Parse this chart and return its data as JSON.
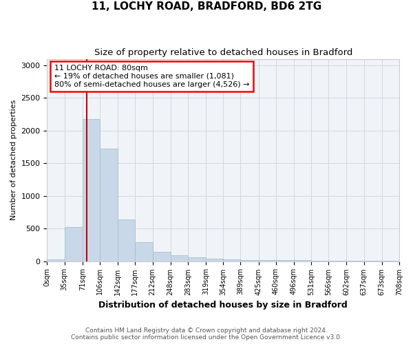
{
  "title1": "11, LOCHY ROAD, BRADFORD, BD6 2TG",
  "title2": "Size of property relative to detached houses in Bradford",
  "xlabel": "Distribution of detached houses by size in Bradford",
  "ylabel": "Number of detached properties",
  "footer1": "Contains HM Land Registry data © Crown copyright and database right 2024.",
  "footer2": "Contains public sector information licensed under the Open Government Licence v3.0.",
  "annotation_line1": "11 LOCHY ROAD: 80sqm",
  "annotation_line2": "← 19% of detached houses are smaller (1,081)",
  "annotation_line3": "80% of semi-detached houses are larger (4,526) →",
  "bar_color": "#c8d8e8",
  "bar_edge_color": "#a8bfd0",
  "red_line_x": 80,
  "bin_edges": [
    0,
    35,
    71,
    106,
    142,
    177,
    212,
    248,
    283,
    319,
    354,
    389,
    425,
    460,
    496,
    531,
    566,
    602,
    637,
    673,
    708
  ],
  "bar_heights": [
    30,
    520,
    2180,
    1720,
    640,
    290,
    145,
    90,
    55,
    40,
    25,
    20,
    15,
    20,
    15,
    8,
    5,
    5,
    5,
    5
  ],
  "ylim": [
    0,
    3100
  ],
  "yticks": [
    0,
    500,
    1000,
    1500,
    2000,
    2500,
    3000
  ],
  "annotation_box_color": "white",
  "annotation_box_edge_color": "red",
  "red_line_color": "#cc0000",
  "grid_color": "#d0d8e0",
  "background_color": "#f0f4f8"
}
